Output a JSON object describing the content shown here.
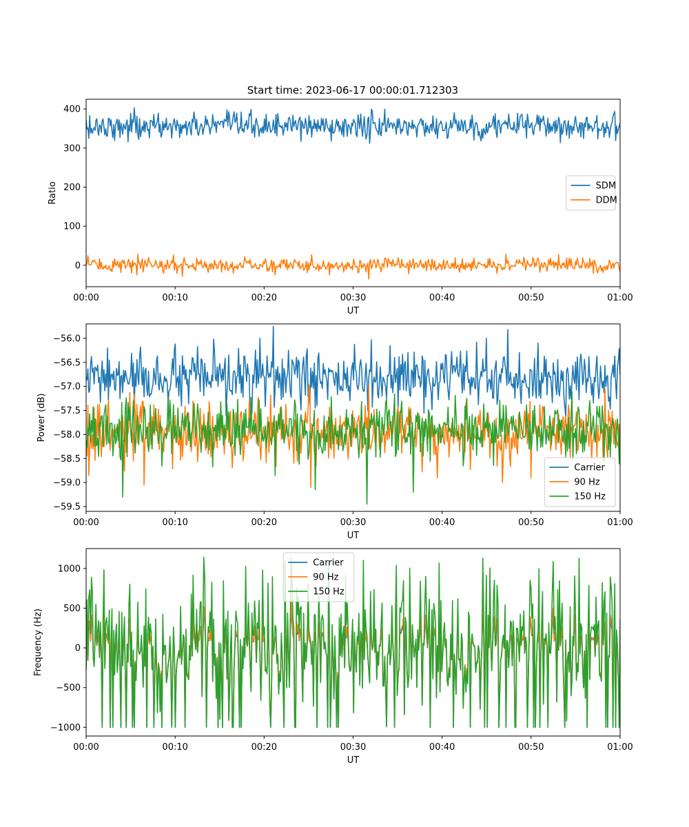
{
  "figure": {
    "title": "Start time: 2023-06-17 00:00:01.712303"
  },
  "colors": {
    "blue": "#1f77b4",
    "orange": "#ff7f0e",
    "green": "#2ca02c"
  },
  "chart_data": [
    {
      "type": "line",
      "title": "Start time: 2023-06-17 00:00:01.712303",
      "xlabel": "UT",
      "ylabel": "Ratio",
      "xlim": [
        0,
        60
      ],
      "ylim": [
        -55,
        425
      ],
      "x_ticks": [
        {
          "value": 0,
          "label": "00:00"
        },
        {
          "value": 10,
          "label": "00:10"
        },
        {
          "value": 20,
          "label": "00:20"
        },
        {
          "value": 30,
          "label": "00:30"
        },
        {
          "value": 40,
          "label": "00:40"
        },
        {
          "value": 50,
          "label": "00:50"
        },
        {
          "value": 60,
          "label": "01:00"
        }
      ],
      "y_ticks": [
        0,
        100,
        200,
        300,
        400
      ],
      "grid": false,
      "legend_position": "center-right",
      "series": [
        {
          "name": "SDM",
          "color": "#1f77b4",
          "mean": 356,
          "spread": 16,
          "highlights": [
            [
              0.3,
              325
            ],
            [
              5.4,
              403
            ],
            [
              5.9,
              322
            ],
            [
              10.5,
              327
            ],
            [
              27.5,
              318
            ],
            [
              43.6,
              320
            ],
            [
              47.5,
              387
            ]
          ]
        },
        {
          "name": "DDM",
          "color": "#ff7f0e",
          "mean": 0,
          "spread": 9,
          "highlights": [
            [
              0.2,
              24
            ],
            [
              5.7,
              -25
            ],
            [
              9.8,
              26
            ],
            [
              10.8,
              -28
            ],
            [
              31.8,
              -35
            ],
            [
              47.2,
              28
            ],
            [
              53.1,
              27
            ]
          ]
        }
      ]
    },
    {
      "type": "line",
      "xlabel": "UT",
      "ylabel": "Power (dB)",
      "xlim": [
        0,
        60
      ],
      "ylim": [
        -59.6,
        -55.7
      ],
      "x_ticks": [
        {
          "value": 0,
          "label": "00:00"
        },
        {
          "value": 10,
          "label": "00:10"
        },
        {
          "value": 20,
          "label": "00:20"
        },
        {
          "value": 30,
          "label": "00:30"
        },
        {
          "value": 40,
          "label": "00:40"
        },
        {
          "value": 50,
          "label": "00:50"
        },
        {
          "value": 60,
          "label": "01:00"
        }
      ],
      "y_ticks": [
        {
          "value": -59.5,
          "label": "−59.5"
        },
        {
          "value": -59.0,
          "label": "−59.0"
        },
        {
          "value": -58.5,
          "label": "−58.5"
        },
        {
          "value": -58.0,
          "label": "−58.0"
        },
        {
          "value": -57.5,
          "label": "−57.5"
        },
        {
          "value": -57.0,
          "label": "−57.0"
        },
        {
          "value": -56.5,
          "label": "−56.5"
        },
        {
          "value": -56.0,
          "label": "−56.0"
        }
      ],
      "grid": false,
      "legend_position": "lower-right",
      "series": [
        {
          "name": "Carrier",
          "color": "#1f77b4",
          "mean": -56.85,
          "spread": 0.28,
          "highlights": [
            [
              21.0,
              -55.75
            ],
            [
              19.5,
              -56.0
            ],
            [
              45.0,
              -56.0
            ],
            [
              50.8,
              -56.1
            ]
          ]
        },
        {
          "name": "90 Hz",
          "color": "#ff7f0e",
          "mean": -57.95,
          "spread": 0.3,
          "highlights": [
            [
              0.3,
              -58.85
            ],
            [
              6.5,
              -59.05
            ],
            [
              25.2,
              -59.1
            ],
            [
              39.5,
              -58.9
            ],
            [
              46.8,
              -59.0
            ],
            [
              50.0,
              -58.9
            ]
          ]
        },
        {
          "name": "150 Hz",
          "color": "#2ca02c",
          "mean": -57.9,
          "spread": 0.3,
          "highlights": [
            [
              4.1,
              -59.3
            ],
            [
              25.7,
              -59.15
            ],
            [
              31.6,
              -59.45
            ],
            [
              36.8,
              -59.2
            ]
          ]
        }
      ]
    },
    {
      "type": "line",
      "xlabel": "UT",
      "ylabel": "Frequency (Hz)",
      "xlim": [
        0,
        60
      ],
      "ylim": [
        -1110,
        1250
      ],
      "x_ticks": [
        {
          "value": 0,
          "label": "00:00"
        },
        {
          "value": 10,
          "label": "00:10"
        },
        {
          "value": 20,
          "label": "00:20"
        },
        {
          "value": 30,
          "label": "00:30"
        },
        {
          "value": 40,
          "label": "00:40"
        },
        {
          "value": 50,
          "label": "00:50"
        },
        {
          "value": 60,
          "label": "01:00"
        }
      ],
      "y_ticks": [
        {
          "value": -1000,
          "label": "−1000"
        },
        {
          "value": -500,
          "label": "−500"
        },
        {
          "value": 0,
          "label": "0"
        },
        {
          "value": 500,
          "label": "500"
        },
        {
          "value": 1000,
          "label": "1000"
        }
      ],
      "grid": false,
      "legend_position": "upper-center",
      "series": [
        {
          "name": "Carrier",
          "color": "#1f77b4",
          "base_scale": 0.36,
          "clip": -1000
        },
        {
          "name": "90 Hz",
          "color": "#ff7f0e",
          "base_scale": 0.45,
          "clip": -900
        },
        {
          "name": "150 Hz",
          "color": "#2ca02c",
          "base_scale": 1.0,
          "clip": -1000
        }
      ]
    }
  ]
}
